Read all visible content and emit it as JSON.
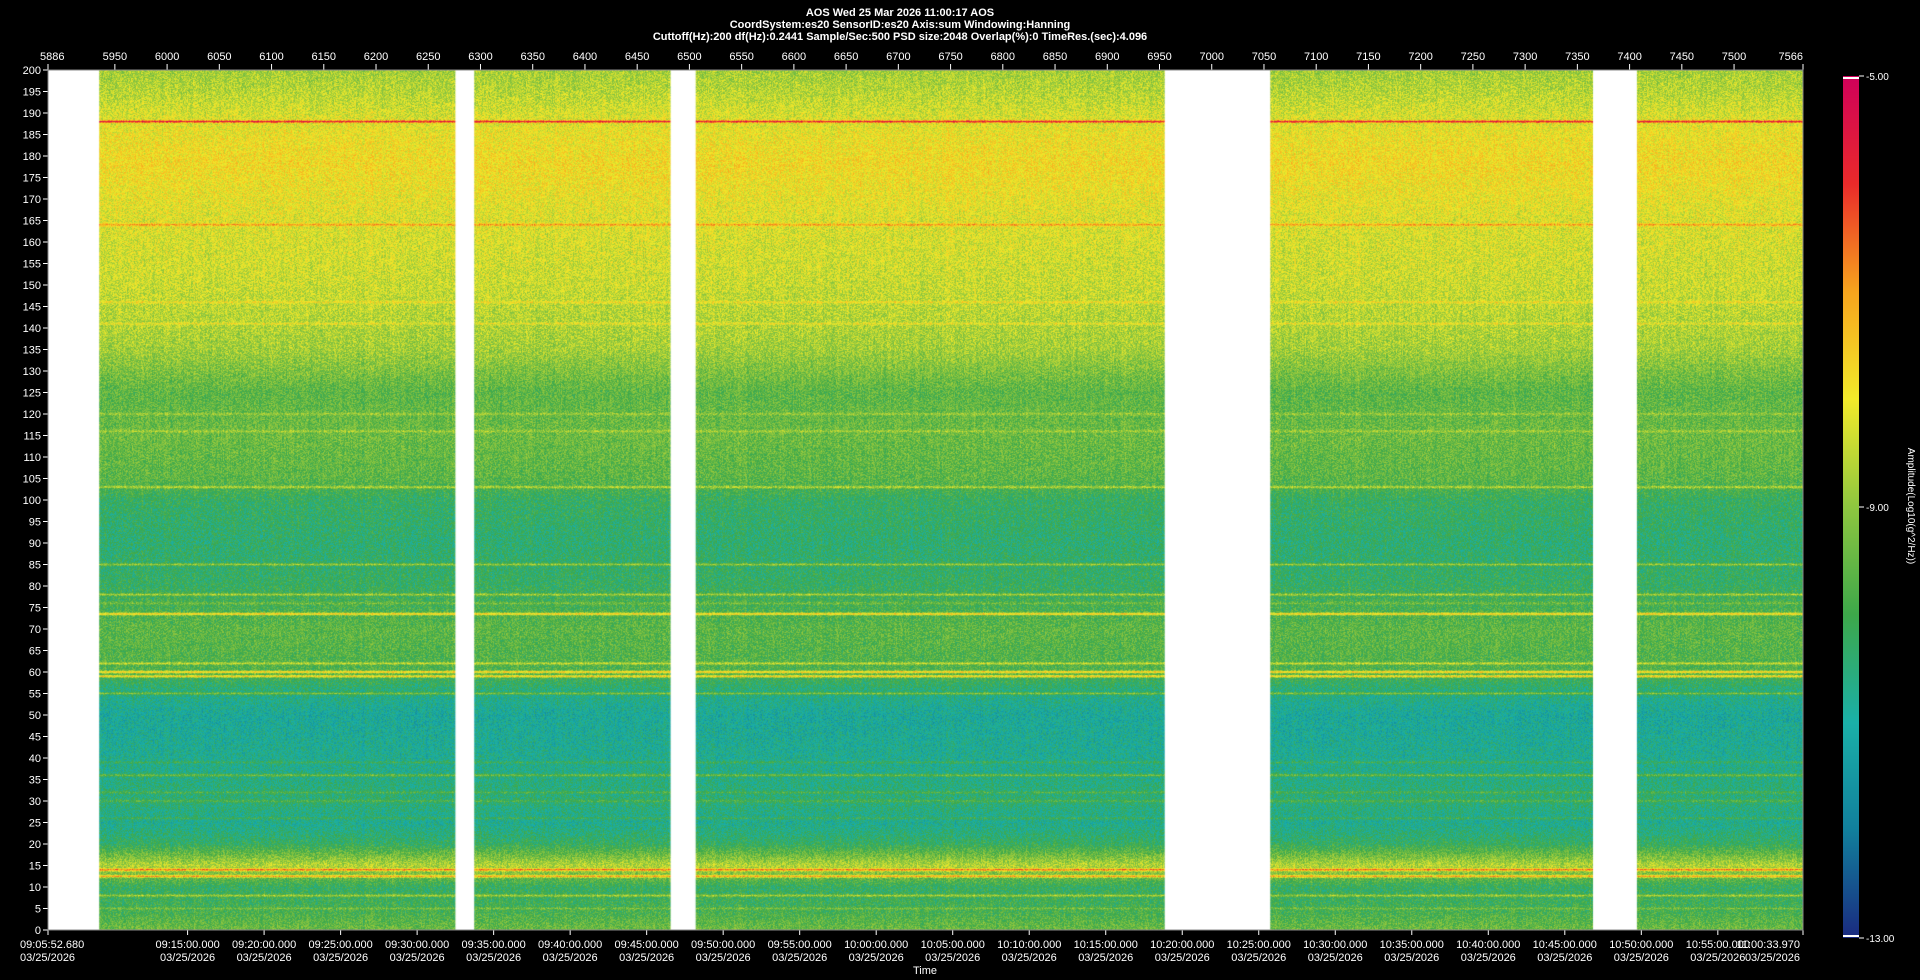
{
  "header": {
    "line1": "AOS   Wed 25 Mar 2026 11:00:17   AOS",
    "line2": "CoordSystem:es20    SensorID:es20     Axis:sum     Windowing:Hanning",
    "line3": "Cuttoff(Hz):200      df(Hz):0.2441       Sample/Sec:500       PSD size:2048       Overlap(%):0        TimeRes.(sec):4.096"
  },
  "chart_data": {
    "type": "heatmap",
    "title": "AOS   Wed 25 Mar 2026 11:00:17   AOS",
    "xlabel": "Time",
    "ylabel": "",
    "colorbar_label": "Amplitude(Log10(g^2/Hz))",
    "colorbar_ticks": [
      "-5.00",
      "-9.00",
      "-13.00"
    ],
    "colorbar_range": [
      -13,
      -5
    ],
    "colormap": [
      "#1a2a80",
      "#117f9c",
      "#1ab0a8",
      "#3da84a",
      "#8ec63f",
      "#f2ea2a",
      "#f7a41d",
      "#ea2a2a",
      "#d0005a"
    ],
    "grid": false,
    "ylim": [
      0,
      200
    ],
    "y_ticks": [
      200,
      195,
      190,
      185,
      180,
      175,
      170,
      165,
      160,
      155,
      150,
      145,
      140,
      135,
      130,
      125,
      120,
      115,
      110,
      105,
      100,
      95,
      90,
      85,
      80,
      75,
      70,
      65,
      60,
      55,
      50,
      45,
      40,
      35,
      30,
      25,
      20,
      15,
      10,
      5,
      0
    ],
    "top_axis_range": [
      5886,
      7566
    ],
    "top_ticks": [
      "5886",
      "5950",
      "6000",
      "6050",
      "6100",
      "6150",
      "6200",
      "6250",
      "6300",
      "6350",
      "6400",
      "6450",
      "6500",
      "6550",
      "6600",
      "6650",
      "6700",
      "6750",
      "6800",
      "6850",
      "6900",
      "6950",
      "7000",
      "7050",
      "7100",
      "7150",
      "7200",
      "7250",
      "7300",
      "7350",
      "7400",
      "7450",
      "7500",
      "7566"
    ],
    "time_ticks": [
      {
        "time": "09:05:52.680",
        "date": "03/25/2026"
      },
      {
        "time": "09:15:00.000",
        "date": "03/25/2026"
      },
      {
        "time": "09:20:00.000",
        "date": "03/25/2026"
      },
      {
        "time": "09:25:00.000",
        "date": "03/25/2026"
      },
      {
        "time": "09:30:00.000",
        "date": "03/25/2026"
      },
      {
        "time": "09:35:00.000",
        "date": "03/25/2026"
      },
      {
        "time": "09:40:00.000",
        "date": "03/25/2026"
      },
      {
        "time": "09:45:00.000",
        "date": "03/25/2026"
      },
      {
        "time": "09:50:00.000",
        "date": "03/25/2026"
      },
      {
        "time": "09:55:00.000",
        "date": "03/25/2026"
      },
      {
        "time": "10:00:00.000",
        "date": "03/25/2026"
      },
      {
        "time": "10:05:00.000",
        "date": "03/25/2026"
      },
      {
        "time": "10:10:00.000",
        "date": "03/25/2026"
      },
      {
        "time": "10:15:00.000",
        "date": "03/25/2026"
      },
      {
        "time": "10:20:00.000",
        "date": "03/25/2026"
      },
      {
        "time": "10:25:00.000",
        "date": "03/25/2026"
      },
      {
        "time": "10:30:00.000",
        "date": "03/25/2026"
      },
      {
        "time": "10:35:00.000",
        "date": "03/25/2026"
      },
      {
        "time": "10:40:00.000",
        "date": "03/25/2026"
      },
      {
        "time": "10:45:00.000",
        "date": "03/25/2026"
      },
      {
        "time": "10:50:00.000",
        "date": "03/25/2026"
      },
      {
        "time": "10:55:00.000",
        "date": "03/25/2026"
      },
      {
        "time": "11:00:33.970",
        "date": "03/25/2026"
      }
    ],
    "data_gaps": [
      [
        5886,
        5935
      ],
      [
        6276,
        6294
      ],
      [
        6482,
        6506
      ],
      [
        6955,
        7056
      ],
      [
        7365,
        7407
      ]
    ],
    "spectral_lines_hz": [
      {
        "hz": 188,
        "level": "high"
      },
      {
        "hz": 164,
        "level": "med"
      },
      {
        "hz": 146,
        "level": "low"
      },
      {
        "hz": 141,
        "level": "low"
      },
      {
        "hz": 120,
        "level": "low"
      },
      {
        "hz": 116,
        "level": "low"
      },
      {
        "hz": 103,
        "level": "med"
      },
      {
        "hz": 85,
        "level": "med"
      },
      {
        "hz": 78,
        "level": "med"
      },
      {
        "hz": 76,
        "level": "low"
      },
      {
        "hz": 73.5,
        "level": "high"
      },
      {
        "hz": 62,
        "level": "med"
      },
      {
        "hz": 60,
        "level": "high"
      },
      {
        "hz": 59,
        "level": "high"
      },
      {
        "hz": 55,
        "level": "med"
      },
      {
        "hz": 39,
        "level": "low"
      },
      {
        "hz": 36,
        "level": "med"
      },
      {
        "hz": 32,
        "level": "low"
      },
      {
        "hz": 30,
        "level": "low"
      },
      {
        "hz": 26,
        "level": "low"
      },
      {
        "hz": 14,
        "level": "high"
      },
      {
        "hz": 12.5,
        "level": "high"
      },
      {
        "hz": 8,
        "level": "med"
      },
      {
        "hz": 5,
        "level": "low"
      }
    ],
    "background_profile": [
      {
        "hz": 0,
        "value": -9.4
      },
      {
        "hz": 5,
        "value": -10.0
      },
      {
        "hz": 10,
        "value": -10.2
      },
      {
        "hz": 15,
        "value": -8.6
      },
      {
        "hz": 20,
        "value": -10.2
      },
      {
        "hz": 25,
        "value": -10.8
      },
      {
        "hz": 30,
        "value": -10.4
      },
      {
        "hz": 40,
        "value": -10.8
      },
      {
        "hz": 50,
        "value": -11.0
      },
      {
        "hz": 55,
        "value": -10.6
      },
      {
        "hz": 60,
        "value": -9.8
      },
      {
        "hz": 70,
        "value": -9.6
      },
      {
        "hz": 80,
        "value": -10.2
      },
      {
        "hz": 90,
        "value": -10.4
      },
      {
        "hz": 100,
        "value": -10.2
      },
      {
        "hz": 105,
        "value": -9.6
      },
      {
        "hz": 115,
        "value": -9.4
      },
      {
        "hz": 125,
        "value": -9.6
      },
      {
        "hz": 135,
        "value": -8.8
      },
      {
        "hz": 150,
        "value": -8.4
      },
      {
        "hz": 165,
        "value": -8.2
      },
      {
        "hz": 178,
        "value": -7.8
      },
      {
        "hz": 185,
        "value": -8.0
      },
      {
        "hz": 195,
        "value": -8.6
      },
      {
        "hz": 200,
        "value": -8.8
      }
    ]
  }
}
